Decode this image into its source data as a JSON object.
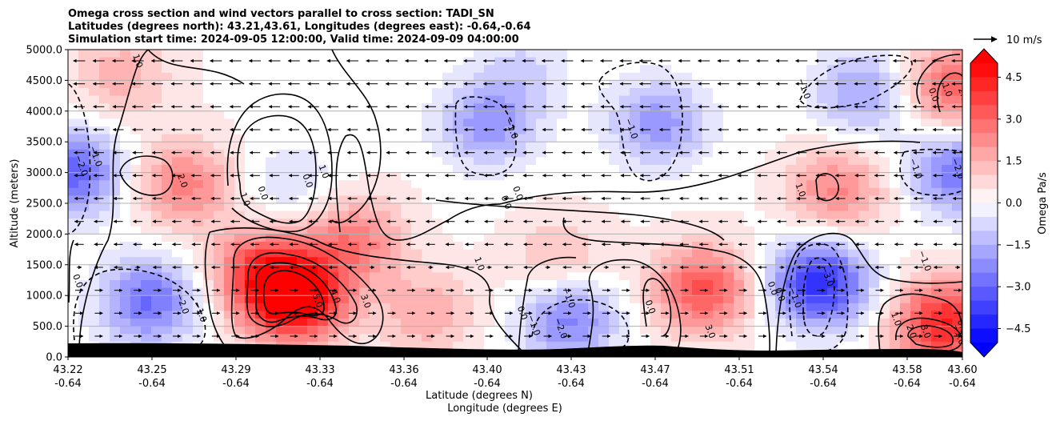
{
  "chart_data": {
    "type": "heatmap",
    "title_lines": [
      "Omega cross section and wind vectors parallel to cross section: TADI_SN",
      "Latitudes (degrees north): 43.21,43.61, Longitudes (degrees east): -0.64,-0.64",
      "Simulation start time: 2024-09-05 12:00:00, Valid time: 2024-09-09 04:00:00"
    ],
    "ylabel": "Altitude (meters)",
    "xlabel_line1": "Latitude (degrees N)",
    "xlabel_line2": "Longitude (degrees E)",
    "y_ticks": [
      "0.0",
      "500.0",
      "1000.0",
      "1500.0",
      "2000.0",
      "2500.0",
      "3000.0",
      "3500.0",
      "4000.0",
      "4500.0",
      "5000.0"
    ],
    "ylim": [
      0,
      5000
    ],
    "x_ticks": [
      {
        "lat": "43.22",
        "lon": "-0.64"
      },
      {
        "lat": "43.25",
        "lon": "-0.64"
      },
      {
        "lat": "43.29",
        "lon": "-0.64"
      },
      {
        "lat": "43.33",
        "lon": "-0.64"
      },
      {
        "lat": "43.36",
        "lon": "-0.64"
      },
      {
        "lat": "43.40",
        "lon": "-0.64"
      },
      {
        "lat": "43.43",
        "lon": "-0.64"
      },
      {
        "lat": "43.47",
        "lon": "-0.64"
      },
      {
        "lat": "43.51",
        "lon": "-0.64"
      },
      {
        "lat": "43.54",
        "lon": "-0.64"
      },
      {
        "lat": "43.58",
        "lon": "-0.64"
      },
      {
        "lat": "43.60",
        "lon": "-0.64"
      }
    ],
    "colorbar": {
      "label": "Omega Pa/s",
      "ticks": [
        "4.5",
        "3.0",
        "1.5",
        "0.0",
        "−1.5",
        "−3.0",
        "−4.5"
      ],
      "range": [
        -5,
        5
      ],
      "extend": "both",
      "colormap": "bwr"
    },
    "wind_key": {
      "label": "10 m/s"
    },
    "grid": "horizontal",
    "omega_features": [
      {
        "x_frac": 0.255,
        "alt": 950,
        "omega": 5.5
      },
      {
        "x_frac": 0.215,
        "alt": 1400,
        "omega": 3.0
      },
      {
        "x_frac": 0.32,
        "alt": 1900,
        "omega": 2.4
      },
      {
        "x_frac": 0.13,
        "alt": 2800,
        "omega": 2.3
      },
      {
        "x_frac": 0.06,
        "alt": 4600,
        "omega": 1.4
      },
      {
        "x_frac": 0.25,
        "alt": 2800,
        "omega": -0.9
      },
      {
        "x_frac": 0.09,
        "alt": 900,
        "omega": -3.0
      },
      {
        "x_frac": 0.005,
        "alt": 3000,
        "omega": -3.2
      },
      {
        "x_frac": 0.47,
        "alt": 3800,
        "omega": -2.2
      },
      {
        "x_frac": 0.66,
        "alt": 3800,
        "omega": -2.2
      },
      {
        "x_frac": 0.56,
        "alt": 600,
        "omega": -2.6
      },
      {
        "x_frac": 0.51,
        "alt": 4700,
        "omega": -0.9
      },
      {
        "x_frac": 0.84,
        "alt": 1200,
        "omega": -4.3
      },
      {
        "x_frac": 0.89,
        "alt": 4300,
        "omega": -2.0
      },
      {
        "x_frac": 0.995,
        "alt": 3000,
        "omega": -2.8
      },
      {
        "x_frac": 0.71,
        "alt": 1100,
        "omega": 3.3
      },
      {
        "x_frac": 0.86,
        "alt": 2700,
        "omega": 2.2
      },
      {
        "x_frac": 0.98,
        "alt": 550,
        "omega": 4.2
      },
      {
        "x_frac": 0.99,
        "alt": 4400,
        "omega": 3.0
      },
      {
        "x_frac": 0.55,
        "alt": 1600,
        "omega": 1.2
      },
      {
        "x_frac": 0.4,
        "alt": 700,
        "omega": 1.5
      }
    ],
    "contour_labels": [
      {
        "text": "1.0",
        "x_frac": 0.075,
        "alt": 4800
      },
      {
        "text": "2.0",
        "x_frac": 0.125,
        "alt": 2850
      },
      {
        "text": "1.0",
        "x_frac": 0.195,
        "alt": 2550
      },
      {
        "text": "0.0",
        "x_frac": 0.215,
        "alt": 2650
      },
      {
        "text": "0.0",
        "x_frac": 0.265,
        "alt": 2850
      },
      {
        "text": "1.0",
        "x_frac": 0.283,
        "alt": 3000
      },
      {
        "text": "−2.0",
        "x_frac": 0.012,
        "alt": 3100
      },
      {
        "text": "−1.0",
        "x_frac": 0.028,
        "alt": 3250
      },
      {
        "text": "0.0",
        "x_frac": 0.008,
        "alt": 1220
      },
      {
        "text": "−2.0",
        "x_frac": 0.125,
        "alt": 850
      },
      {
        "text": "−1.0",
        "x_frac": 0.145,
        "alt": 720
      },
      {
        "text": "5.0",
        "x_frac": 0.276,
        "alt": 900
      },
      {
        "text": "4.0",
        "x_frac": 0.296,
        "alt": 970
      },
      {
        "text": "3.0",
        "x_frac": 0.33,
        "alt": 890
      },
      {
        "text": "1.0",
        "x_frac": 0.457,
        "alt": 1500
      },
      {
        "text": "−1.0",
        "x_frac": 0.493,
        "alt": 3700
      },
      {
        "text": "0.0",
        "x_frac": 0.487,
        "alt": 2500
      },
      {
        "text": "0.0",
        "x_frac": 0.5,
        "alt": 2650
      },
      {
        "text": "−1.0",
        "x_frac": 0.627,
        "alt": 3700
      },
      {
        "text": "1.0",
        "x_frac": 0.816,
        "alt": 2700
      },
      {
        "text": "−1.0",
        "x_frac": 0.82,
        "alt": 4350
      },
      {
        "text": "0.0",
        "x_frac": 0.965,
        "alt": 4250
      },
      {
        "text": "1.0",
        "x_frac": 0.98,
        "alt": 4330
      },
      {
        "text": "2.0",
        "x_frac": 0.998,
        "alt": 4250
      },
      {
        "text": "−1.0",
        "x_frac": 0.945,
        "alt": 3050
      },
      {
        "text": "−2.0",
        "x_frac": 0.992,
        "alt": 3050
      },
      {
        "text": "−1.0",
        "x_frac": 0.955,
        "alt": 1550
      },
      {
        "text": "0.0",
        "x_frac": 0.505,
        "alt": 700
      },
      {
        "text": "−1.0",
        "x_frac": 0.518,
        "alt": 500
      },
      {
        "text": "−1.0",
        "x_frac": 0.557,
        "alt": 950
      },
      {
        "text": "−2.0",
        "x_frac": 0.548,
        "alt": 450
      },
      {
        "text": "0.0",
        "x_frac": 0.648,
        "alt": 800
      },
      {
        "text": "3.0",
        "x_frac": 0.715,
        "alt": 400
      },
      {
        "text": "0.0",
        "x_frac": 0.785,
        "alt": 1100
      },
      {
        "text": "0.0",
        "x_frac": 0.793,
        "alt": 1000
      },
      {
        "text": "−1.0",
        "x_frac": 0.81,
        "alt": 950
      },
      {
        "text": "−3.0",
        "x_frac": 0.846,
        "alt": 1300
      },
      {
        "text": "1.0",
        "x_frac": 0.923,
        "alt": 600
      },
      {
        "text": "2.0",
        "x_frac": 0.94,
        "alt": 400
      },
      {
        "text": "3.0",
        "x_frac": 0.956,
        "alt": 400
      },
      {
        "text": "0.0",
        "x_frac": 0.997,
        "alt": 480
      },
      {
        "text": "−1.0",
        "x_frac": 0.993,
        "alt": 350
      }
    ]
  }
}
